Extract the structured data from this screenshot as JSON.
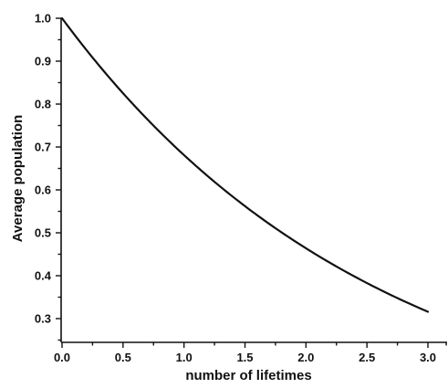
{
  "chart_data": {
    "type": "line",
    "title": "",
    "xlabel": "number of lifetimes",
    "ylabel": "Average population",
    "xlim": [
      0.0,
      3.0
    ],
    "ylim": [
      0.25,
      1.0
    ],
    "x_ticks": [
      0.0,
      0.5,
      1.0,
      1.5,
      2.0,
      2.5,
      3.0
    ],
    "x_tick_labels": [
      "0.0",
      "0.5",
      "1.0",
      "1.5",
      "2.0",
      "2.5",
      "3.0"
    ],
    "y_ticks": [
      0.3,
      0.4,
      0.5,
      0.6,
      0.7,
      0.8,
      0.9,
      1.0
    ],
    "y_tick_labels": [
      "0.3",
      "0.4",
      "0.5",
      "0.6",
      "0.7",
      "0.8",
      "0.9",
      "1.0"
    ],
    "grid": false,
    "series": [
      {
        "x": [
          0.0,
          0.1,
          0.2,
          0.3,
          0.4,
          0.5,
          0.6,
          0.7,
          0.8,
          0.9,
          1.0,
          1.1,
          1.2,
          1.3,
          1.4,
          1.5,
          1.6,
          1.7,
          1.8,
          1.9,
          2.0,
          2.1,
          2.2,
          2.3,
          2.4,
          2.5,
          2.6,
          2.7,
          2.8,
          2.9,
          3.0
        ],
        "y": [
          1.0,
          0.951,
          0.905,
          0.861,
          0.819,
          0.779,
          0.741,
          0.705,
          0.67,
          0.638,
          0.632,
          0.601,
          0.573,
          0.546,
          0.52,
          0.514,
          0.491,
          0.469,
          0.449,
          0.43,
          0.432,
          0.414,
          0.397,
          0.381,
          0.366,
          0.368,
          0.353,
          0.34,
          0.327,
          0.322,
          0.316
        ],
        "color": "#111111"
      }
    ]
  }
}
